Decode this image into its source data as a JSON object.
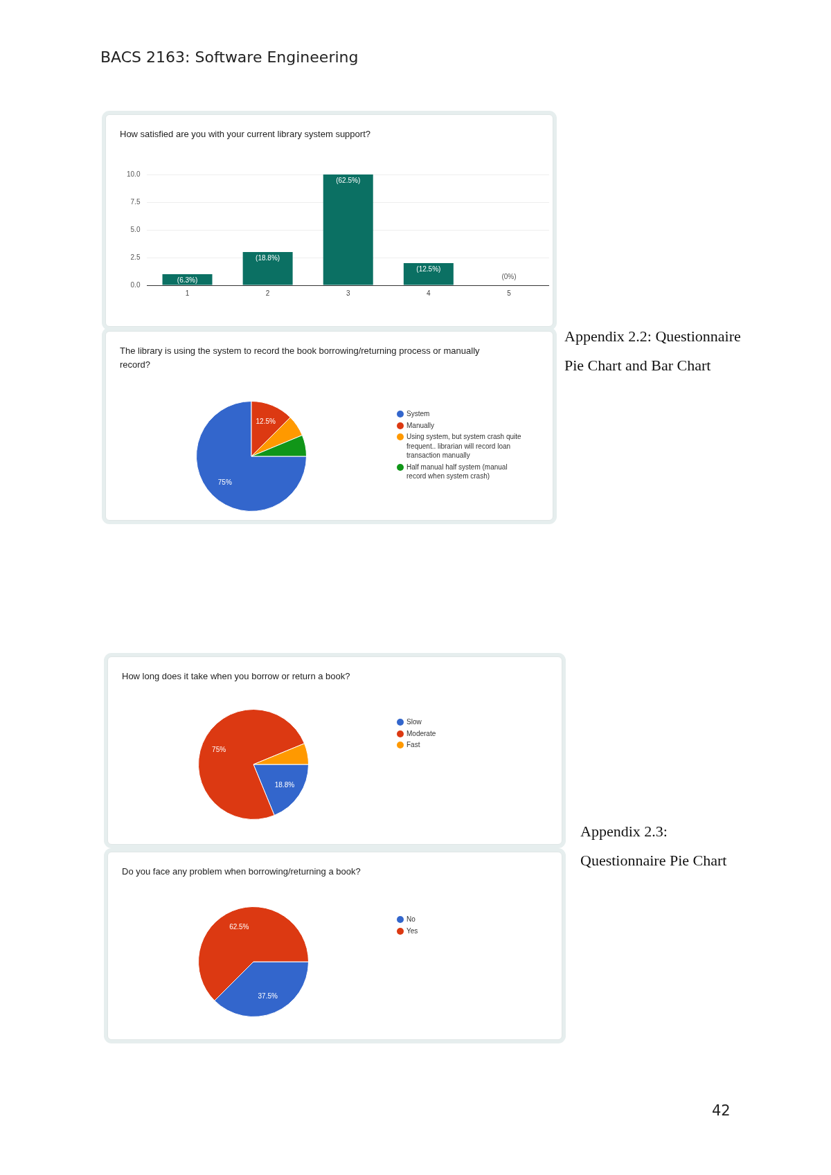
{
  "chart_data": [
    {
      "type": "bar",
      "title": "How satisfied are you with your current library system support?",
      "categories": [
        "1",
        "2",
        "3",
        "4",
        "5"
      ],
      "values": [
        1,
        3,
        10,
        2,
        0
      ],
      "color": "#0b7063",
      "ylim": [
        0,
        10
      ],
      "yticks": [
        {
          "value": 0,
          "label": "0.0"
        },
        {
          "value": 2.5,
          "label": "2.5"
        },
        {
          "value": 5,
          "label": "5.0"
        },
        {
          "value": 7.5,
          "label": "7.5"
        },
        {
          "value": 10,
          "label": "10.0"
        }
      ],
      "grid": "y",
      "legend": false,
      "annotations": [
        "BACS 2163: Software Engineering",
        {
          "text": "(6.3%)",
          "x": "1",
          "y": 1
        },
        {
          "text": "(18.8%)",
          "x": "2",
          "y": 3
        },
        {
          "text": "(62.5%)",
          "x": "3",
          "y": 10
        },
        {
          "text": "(12.5%)",
          "x": "4",
          "y": 2
        },
        {
          "text": "(0%)",
          "x": "5",
          "y": 0
        }
      ]
    },
    {
      "type": "pie",
      "title": "The library is using the system to record the book borrowing/returning process or manually record?",
      "categories": [
        "System",
        "Manually",
        "Using system, but system crash quite frequent.. librarian will record loan transaction manually",
        "Half manual half system (manual record when system crash)"
      ],
      "values": [
        75,
        12.5,
        6.25,
        6.25
      ],
      "value_labels": [
        "75%",
        "12.5%",
        null,
        null
      ],
      "colors": [
        "#3366cc",
        "#dc3912",
        "#ff9900",
        "#109618"
      ],
      "legend": "right",
      "annotations": [
        "Appendix 2.2: Questionnaire Pie Chart and Bar Chart"
      ]
    },
    {
      "type": "pie",
      "title": "How long does it take when you borrow or return a book?",
      "categories": [
        "Slow",
        "Moderate",
        "Fast"
      ],
      "values": [
        18.8,
        75,
        6.2
      ],
      "value_labels": [
        "18.8%",
        "75%",
        null
      ],
      "colors": [
        "#3366cc",
        "#dc3912",
        "#ff9900"
      ],
      "legend": "right"
    },
    {
      "type": "pie",
      "title": "Do you face any problem when borrowing/returning a book?",
      "categories": [
        "No",
        "Yes"
      ],
      "values": [
        37.5,
        62.5
      ],
      "value_labels": [
        "37.5%",
        "62.5%"
      ],
      "colors": [
        "#3366cc",
        "#dc3912"
      ],
      "legend": "right",
      "annotations": [
        "Appendix 2.3: Questionnaire Pie Chart",
        "42"
      ]
    }
  ]
}
